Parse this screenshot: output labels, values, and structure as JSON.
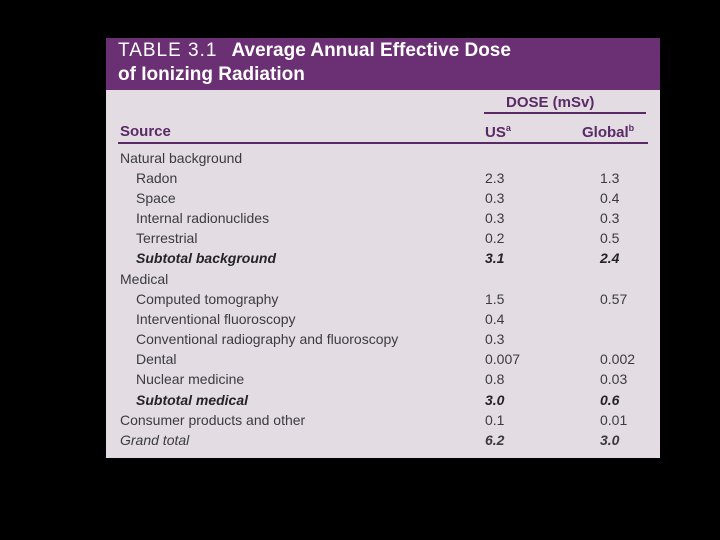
{
  "table": {
    "label": "TABLE 3.1",
    "title_line1": "Average Annual Effective Dose",
    "title_line2": "of Ionizing Radiation",
    "dose_header": "DOSE (mSv)",
    "col_source": "Source",
    "col_us": "US",
    "col_us_note": "a",
    "col_global": "Global",
    "col_global_note": "b",
    "rows": [
      {
        "source": "Natural background",
        "us": "",
        "global": ""
      },
      {
        "source": "Radon",
        "us": "2.3",
        "global": "1.3"
      },
      {
        "source": "Space",
        "us": "0.3",
        "global": "0.4"
      },
      {
        "source": "Internal radionuclides",
        "us": "0.3",
        "global": "0.3"
      },
      {
        "source": "Terrestrial",
        "us": "0.2",
        "global": "0.5"
      },
      {
        "source": "Subtotal background",
        "us": "3.1",
        "global": "2.4"
      },
      {
        "source": "Medical",
        "us": "",
        "global": ""
      },
      {
        "source": "Computed tomography",
        "us": "1.5",
        "global": "0.57"
      },
      {
        "source": "Interventional fluoroscopy",
        "us": "0.4",
        "global": ""
      },
      {
        "source": "Conventional radiography and fluoroscopy",
        "us": "0.3",
        "global": ""
      },
      {
        "source": "Dental",
        "us": "0.007",
        "global": "0.002"
      },
      {
        "source": "Nuclear medicine",
        "us": "0.8",
        "global": "0.03"
      },
      {
        "source": "Subtotal medical",
        "us": "3.0",
        "global": "0.6"
      },
      {
        "source": "Consumer products and other",
        "us": "0.1",
        "global": "0.01"
      },
      {
        "source": "Grand total",
        "us": "6.2",
        "global": "3.0"
      }
    ]
  },
  "colors": {
    "banner": "#6b2f74",
    "header_text": "#5a2a66",
    "paper": "#e3dde3",
    "body_text": "#3a3a40"
  }
}
